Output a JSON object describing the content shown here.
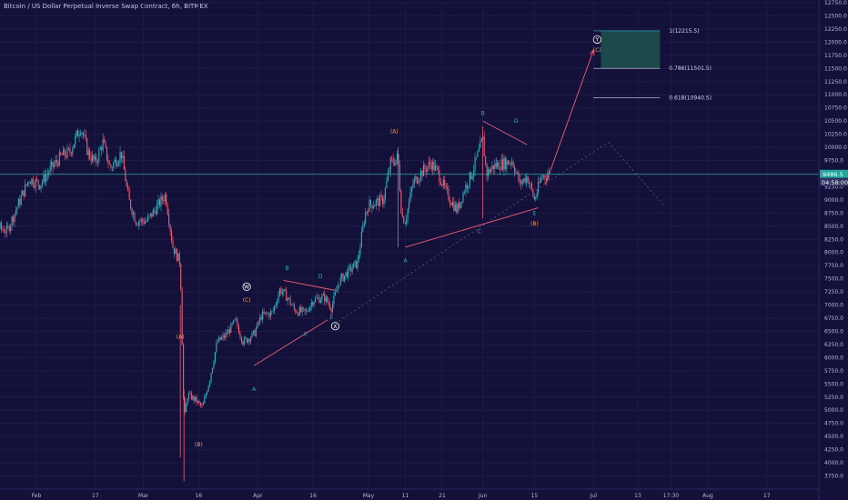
{
  "header": {
    "title": "Bitcoin / US Dollar Perpetual Inverse Swap Contract, 6h, BITMEX"
  },
  "colors": {
    "background": "#13103a",
    "candle_up": "#30b3bf",
    "candle_down": "#ef5d74",
    "wave_line": "#ef5d74",
    "current_price": "#26a69a",
    "price_badge": "#2f3366",
    "zone": "#1f4f4f"
  },
  "chart_data": {
    "type": "candlestick",
    "timeframe": "6h",
    "ylim": [
      3500,
      12750
    ],
    "y_ticks": [
      12750,
      12500,
      12250,
      12000,
      11750,
      11500,
      11250,
      11000,
      10750,
      10500,
      10250,
      10000,
      9750,
      9500,
      9250,
      9000,
      8750,
      8500,
      8250,
      8000,
      7750,
      7500,
      7250,
      7000,
      6750,
      6500,
      6250,
      6000,
      5750,
      5500,
      5250,
      5000,
      4750,
      4500,
      4250,
      4000,
      3750
    ],
    "x_ticks": [
      {
        "label": "Feb",
        "date": "2020-02-01"
      },
      {
        "label": "17",
        "date": "2020-02-17"
      },
      {
        "label": "Mar",
        "date": "2020-03-01"
      },
      {
        "label": "16",
        "date": "2020-03-16"
      },
      {
        "label": "Apr",
        "date": "2020-04-01"
      },
      {
        "label": "16",
        "date": "2020-04-16"
      },
      {
        "label": "May",
        "date": "2020-05-01"
      },
      {
        "label": "11",
        "date": "2020-05-11"
      },
      {
        "label": "21",
        "date": "2020-05-21"
      },
      {
        "label": "Jun",
        "date": "2020-06-01"
      },
      {
        "label": "15",
        "date": "2020-06-15"
      },
      {
        "label": "Jul",
        "date": "2020-07-01"
      },
      {
        "label": "13",
        "date": "2020-07-13"
      },
      {
        "label": "17:30",
        "date": "2020-07-22"
      },
      {
        "label": "Aug",
        "date": "2020-08-01"
      },
      {
        "label": "17",
        "date": "2020-08-17"
      }
    ],
    "price_path": [
      {
        "date": "2020-01-15",
        "price": 8700
      },
      {
        "date": "2020-01-18",
        "price": 8900
      },
      {
        "date": "2020-01-20",
        "price": 8550
      },
      {
        "date": "2020-01-24",
        "price": 8400
      },
      {
        "date": "2020-01-27",
        "price": 8900
      },
      {
        "date": "2020-01-30",
        "price": 9400
      },
      {
        "date": "2020-02-02",
        "price": 9300
      },
      {
        "date": "2020-02-05",
        "price": 9600
      },
      {
        "date": "2020-02-08",
        "price": 9850
      },
      {
        "date": "2020-02-10",
        "price": 9900
      },
      {
        "date": "2020-02-13",
        "price": 10400
      },
      {
        "date": "2020-02-15",
        "price": 9900
      },
      {
        "date": "2020-02-17",
        "price": 9700
      },
      {
        "date": "2020-02-19",
        "price": 10100
      },
      {
        "date": "2020-02-21",
        "price": 9600
      },
      {
        "date": "2020-02-24",
        "price": 9900
      },
      {
        "date": "2020-02-26",
        "price": 9000
      },
      {
        "date": "2020-02-28",
        "price": 8600
      },
      {
        "date": "2020-03-02",
        "price": 8600
      },
      {
        "date": "2020-03-04",
        "price": 8800
      },
      {
        "date": "2020-03-07",
        "price": 9100
      },
      {
        "date": "2020-03-09",
        "price": 8100
      },
      {
        "date": "2020-03-11",
        "price": 7800
      },
      {
        "date": "2020-03-12",
        "price": 4800
      },
      {
        "date": "2020-03-13",
        "price": 5300
      },
      {
        "date": "2020-03-15",
        "price": 5200
      },
      {
        "date": "2020-03-17",
        "price": 5050
      },
      {
        "date": "2020-03-19",
        "price": 5600
      },
      {
        "date": "2020-03-21",
        "price": 6300
      },
      {
        "date": "2020-03-23",
        "price": 6400
      },
      {
        "date": "2020-03-26",
        "price": 6700
      },
      {
        "date": "2020-03-28",
        "price": 6300
      },
      {
        "date": "2020-03-31",
        "price": 6450
      },
      {
        "date": "2020-04-02",
        "price": 6800
      },
      {
        "date": "2020-04-05",
        "price": 6850
      },
      {
        "date": "2020-04-07",
        "price": 7300
      },
      {
        "date": "2020-04-09",
        "price": 7150
      },
      {
        "date": "2020-04-11",
        "price": 6900
      },
      {
        "date": "2020-04-14",
        "price": 6850
      },
      {
        "date": "2020-04-16",
        "price": 7100
      },
      {
        "date": "2020-04-19",
        "price": 7150
      },
      {
        "date": "2020-04-21",
        "price": 6950
      },
      {
        "date": "2020-04-23",
        "price": 7450
      },
      {
        "date": "2020-04-25",
        "price": 7600
      },
      {
        "date": "2020-04-28",
        "price": 7800
      },
      {
        "date": "2020-04-30",
        "price": 8700
      },
      {
        "date": "2020-05-01",
        "price": 8900
      },
      {
        "date": "2020-05-03",
        "price": 8950
      },
      {
        "date": "2020-05-05",
        "price": 9000
      },
      {
        "date": "2020-05-07",
        "price": 9700
      },
      {
        "date": "2020-05-09",
        "price": 9800
      },
      {
        "date": "2020-05-10",
        "price": 8700
      },
      {
        "date": "2020-05-11",
        "price": 8600
      },
      {
        "date": "2020-05-13",
        "price": 9300
      },
      {
        "date": "2020-05-15",
        "price": 9500
      },
      {
        "date": "2020-05-18",
        "price": 9700
      },
      {
        "date": "2020-05-20",
        "price": 9500
      },
      {
        "date": "2020-05-22",
        "price": 9150
      },
      {
        "date": "2020-05-25",
        "price": 8800
      },
      {
        "date": "2020-05-27",
        "price": 9200
      },
      {
        "date": "2020-05-29",
        "price": 9500
      },
      {
        "date": "2020-06-01",
        "price": 10150
      },
      {
        "date": "2020-06-02",
        "price": 9500
      },
      {
        "date": "2020-06-04",
        "price": 9650
      },
      {
        "date": "2020-06-07",
        "price": 9700
      },
      {
        "date": "2020-06-09",
        "price": 9750
      },
      {
        "date": "2020-06-11",
        "price": 9300
      },
      {
        "date": "2020-06-13",
        "price": 9450
      },
      {
        "date": "2020-06-15",
        "price": 9000
      },
      {
        "date": "2020-06-17",
        "price": 9450
      },
      {
        "date": "2020-06-19",
        "price": 9486.5
      }
    ],
    "current_price": {
      "value": 9486.5,
      "label": "9486.5",
      "countdown": "04:58:00"
    },
    "fib_levels": [
      {
        "ratio": "1",
        "price": 12215.5,
        "label": "1(12215.5)"
      },
      {
        "ratio": "0.786",
        "price": 11501.5,
        "label": "0.786(11501.5)"
      },
      {
        "ratio": "0.618",
        "price": 10940.5,
        "label": "0.618(10940.5)"
      }
    ],
    "wave_labels": [
      {
        "text": "(A)",
        "date": "2020-03-11",
        "price": 6400,
        "color": "#f29e61"
      },
      {
        "text": "(B)",
        "date": "2020-03-16",
        "price": 4350,
        "color": "#f29e61"
      },
      {
        "text": "(C)",
        "date": "2020-03-29",
        "price": 7100,
        "color": "#f29e61"
      },
      {
        "text": "W",
        "date": "2020-03-29",
        "price": 7350,
        "color": "#ffffff",
        "circled": true
      },
      {
        "text": "A",
        "date": "2020-03-31",
        "price": 5400,
        "color": "#30b3bf"
      },
      {
        "text": "B",
        "date": "2020-04-09",
        "price": 7700,
        "color": "#30b3bf"
      },
      {
        "text": "C",
        "date": "2020-04-14",
        "price": 6450,
        "color": "#30b3bf"
      },
      {
        "text": "D",
        "date": "2020-04-18",
        "price": 7550,
        "color": "#30b3bf"
      },
      {
        "text": "E",
        "date": "2020-04-21",
        "price": 6770,
        "color": "#30b3bf"
      },
      {
        "text": "X",
        "date": "2020-04-22",
        "price": 6600,
        "color": "#ffffff",
        "circled": true
      },
      {
        "text": "(A)",
        "date": "2020-05-08",
        "price": 10300,
        "color": "#f29e61"
      },
      {
        "text": "A",
        "date": "2020-05-11",
        "price": 7850,
        "color": "#30b3bf"
      },
      {
        "text": "B",
        "date": "2020-06-01",
        "price": 10650,
        "color": "#30b3bf"
      },
      {
        "text": "C",
        "date": "2020-05-31",
        "price": 8400,
        "color": "#30b3bf"
      },
      {
        "text": "D",
        "date": "2020-06-10",
        "price": 10500,
        "color": "#30b3bf"
      },
      {
        "text": "E",
        "date": "2020-06-15",
        "price": 8750,
        "color": "#30b3bf"
      },
      {
        "text": "(B)",
        "date": "2020-06-15",
        "price": 8550,
        "color": "#f29e61"
      },
      {
        "text": "Y",
        "date": "2020-07-02",
        "price": 12050,
        "color": "#ffffff",
        "circled": true
      },
      {
        "text": "(C)",
        "date": "2020-07-02",
        "price": 11850,
        "color": "#f29e61"
      }
    ],
    "wave_lines": [
      {
        "from": {
          "date": "2020-03-31",
          "price": 5850
        },
        "to": {
          "date": "2020-04-20",
          "price": 6720
        }
      },
      {
        "from": {
          "date": "2020-04-08",
          "price": 7470
        },
        "to": {
          "date": "2020-04-22",
          "price": 7280
        }
      },
      {
        "from": {
          "date": "2020-05-11",
          "price": 8100
        },
        "to": {
          "date": "2020-06-16",
          "price": 8850
        }
      },
      {
        "from": {
          "date": "2020-06-01",
          "price": 10500
        },
        "to": {
          "date": "2020-06-13",
          "price": 10050
        }
      },
      {
        "from": {
          "date": "2020-06-18",
          "price": 9300
        },
        "to": {
          "date": "2020-07-01",
          "price": 11850
        }
      }
    ],
    "dotted_lines": [
      {
        "from": {
          "date": "2020-04-22",
          "price": 6650
        },
        "to": {
          "date": "2020-07-05",
          "price": 10100
        }
      },
      {
        "from": {
          "date": "2020-07-05",
          "price": 10100
        },
        "to": {
          "date": "2020-07-20",
          "price": 8900
        }
      }
    ],
    "vertical_wicks": [
      {
        "date": "2020-03-11",
        "from": 4100,
        "to": 7000
      },
      {
        "date": "2020-05-09",
        "from": 8100,
        "to": 10000
      },
      {
        "date": "2020-06-01",
        "from": 8650,
        "to": 10400
      }
    ]
  }
}
